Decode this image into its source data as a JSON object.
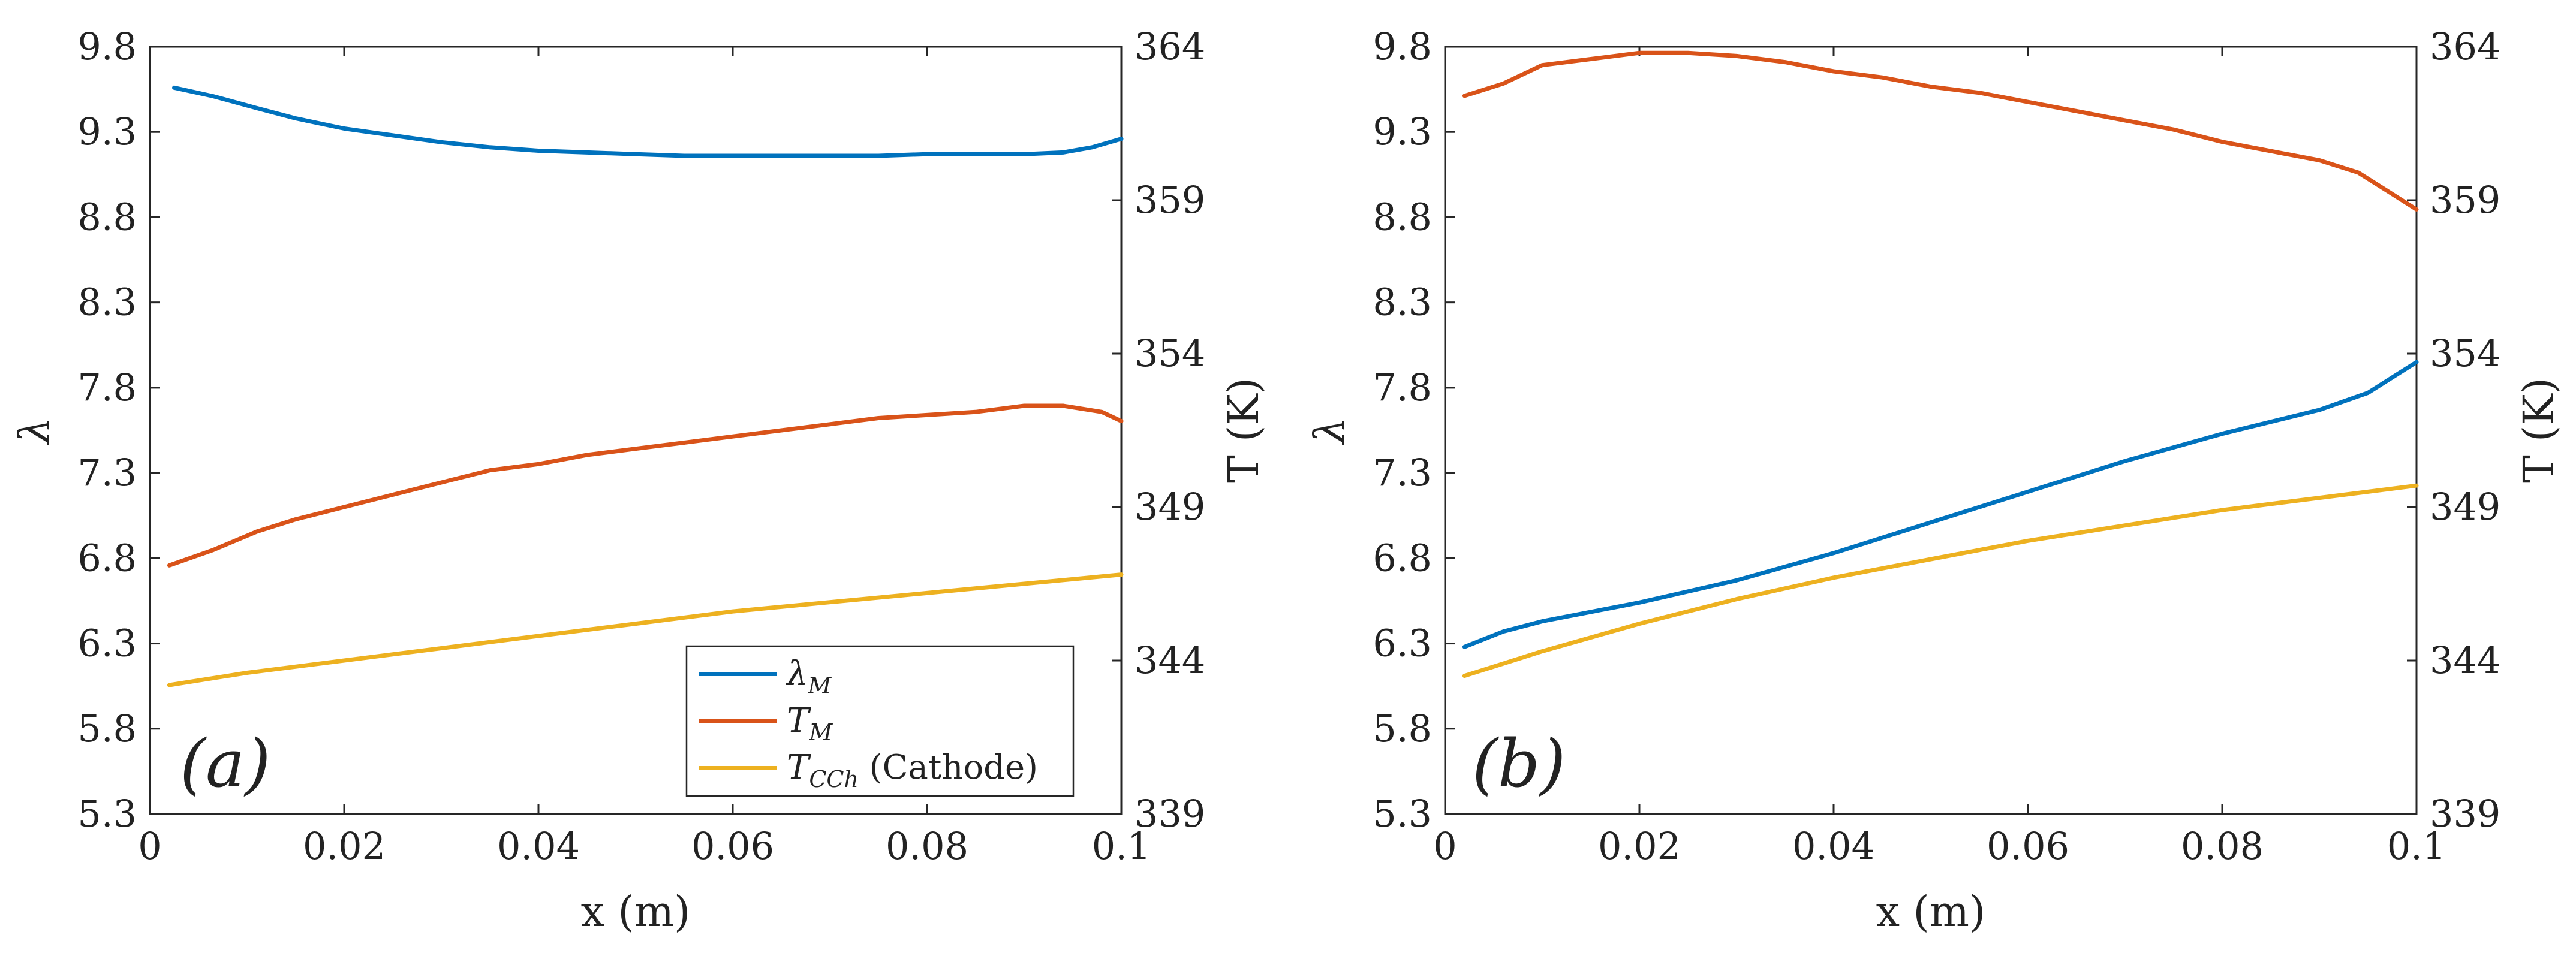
{
  "colors": {
    "lambda_M": "#0072BD",
    "T_M": "#D95319",
    "T_CCh": "#EDB120",
    "axis": "#262626"
  },
  "chart_data": [
    {
      "type": "line",
      "panel_label": "(a)",
      "xlabel": "x (m)",
      "ylabel_left": "λ",
      "ylabel_right": "T (K)",
      "xlim": [
        0,
        0.1
      ],
      "ylim_left": [
        5.3,
        9.8
      ],
      "ylim_right": [
        339,
        364
      ],
      "x_ticks": [
        "0",
        "0.02",
        "0.04",
        "0.06",
        "0.08",
        "0.1"
      ],
      "y_left_ticks": [
        "5.3",
        "5.8",
        "6.3",
        "6.8",
        "7.3",
        "7.8",
        "8.3",
        "8.8",
        "9.3",
        "9.8"
      ],
      "y_right_ticks": [
        "339",
        "344",
        "349",
        "354",
        "359",
        "364"
      ],
      "legend": {
        "location": "bottom-right",
        "entries": [
          {
            "label": "λ_M",
            "base": "λ",
            "sub": "M"
          },
          {
            "label": "T_M",
            "base": "T",
            "sub": "M"
          },
          {
            "label": "T_CCh (Cathode)",
            "base": "T",
            "sub": "CCh",
            "suffix": " (Cathode)"
          }
        ]
      },
      "series": [
        {
          "name": "λ_M",
          "axis": "left",
          "color_key": "lambda_M",
          "x": [
            0.0025,
            0.0065,
            0.011,
            0.015,
            0.02,
            0.025,
            0.03,
            0.035,
            0.04,
            0.045,
            0.05,
            0.055,
            0.06,
            0.065,
            0.07,
            0.075,
            0.08,
            0.085,
            0.09,
            0.094,
            0.097,
            0.1
          ],
          "values": [
            9.56,
            9.51,
            9.44,
            9.38,
            9.32,
            9.28,
            9.24,
            9.21,
            9.19,
            9.18,
            9.17,
            9.16,
            9.16,
            9.16,
            9.16,
            9.16,
            9.17,
            9.17,
            9.17,
            9.18,
            9.21,
            9.26
          ]
        },
        {
          "name": "T_M",
          "axis": "right",
          "color_key": "T_M",
          "x": [
            0.002,
            0.0065,
            0.011,
            0.015,
            0.02,
            0.025,
            0.03,
            0.035,
            0.04,
            0.045,
            0.05,
            0.055,
            0.06,
            0.065,
            0.07,
            0.075,
            0.08,
            0.085,
            0.09,
            0.094,
            0.098,
            0.1
          ],
          "values": [
            347.1,
            347.6,
            348.2,
            348.6,
            349.0,
            349.4,
            349.8,
            350.2,
            350.4,
            350.7,
            350.9,
            351.1,
            351.3,
            351.5,
            351.7,
            351.9,
            352.0,
            352.1,
            352.3,
            352.3,
            352.1,
            351.8
          ]
        },
        {
          "name": "T_CCh (Cathode)",
          "axis": "right",
          "color_key": "T_CCh",
          "x": [
            0.002,
            0.01,
            0.02,
            0.03,
            0.04,
            0.05,
            0.06,
            0.07,
            0.08,
            0.09,
            0.1
          ],
          "values": [
            343.2,
            343.6,
            344.0,
            344.4,
            344.8,
            345.2,
            345.6,
            345.9,
            346.2,
            346.5,
            346.8
          ]
        }
      ]
    },
    {
      "type": "line",
      "panel_label": "(b)",
      "xlabel": "x (m)",
      "ylabel_left": "λ",
      "ylabel_right": "T (K)",
      "xlim": [
        0,
        0.1
      ],
      "ylim_left": [
        5.3,
        9.8
      ],
      "ylim_right": [
        339,
        364
      ],
      "x_ticks": [
        "0",
        "0.02",
        "0.04",
        "0.06",
        "0.08",
        "0.1"
      ],
      "y_left_ticks": [
        "5.3",
        "5.8",
        "6.3",
        "6.8",
        "7.3",
        "7.8",
        "8.3",
        "8.8",
        "9.3",
        "9.8"
      ],
      "y_right_ticks": [
        "339",
        "344",
        "349",
        "354",
        "359",
        "364"
      ],
      "series": [
        {
          "name": "T_M",
          "axis": "right",
          "color_key": "T_M",
          "x": [
            0.002,
            0.006,
            0.01,
            0.015,
            0.02,
            0.025,
            0.03,
            0.035,
            0.04,
            0.045,
            0.05,
            0.055,
            0.06,
            0.065,
            0.07,
            0.075,
            0.08,
            0.085,
            0.09,
            0.094,
            0.097,
            0.1
          ],
          "values": [
            362.4,
            362.8,
            363.4,
            363.6,
            363.8,
            363.8,
            363.7,
            363.5,
            363.2,
            363.0,
            362.7,
            362.5,
            362.2,
            361.9,
            361.6,
            361.3,
            360.9,
            360.6,
            360.3,
            359.9,
            359.3,
            358.7
          ]
        },
        {
          "name": "λ_M",
          "axis": "left",
          "color_key": "lambda_M",
          "x": [
            0.002,
            0.006,
            0.01,
            0.02,
            0.03,
            0.04,
            0.05,
            0.06,
            0.07,
            0.08,
            0.09,
            0.095,
            0.1
          ],
          "values": [
            6.28,
            6.37,
            6.43,
            6.54,
            6.67,
            6.83,
            7.01,
            7.19,
            7.37,
            7.53,
            7.67,
            7.77,
            7.95
          ]
        },
        {
          "name": "T_CCh (Cathode)",
          "axis": "right",
          "color_key": "T_CCh",
          "x": [
            0.002,
            0.01,
            0.02,
            0.03,
            0.04,
            0.05,
            0.06,
            0.07,
            0.08,
            0.09,
            0.1
          ],
          "values": [
            343.5,
            344.3,
            345.2,
            346.0,
            346.7,
            347.3,
            347.9,
            348.4,
            348.9,
            349.3,
            349.7
          ]
        }
      ]
    }
  ]
}
